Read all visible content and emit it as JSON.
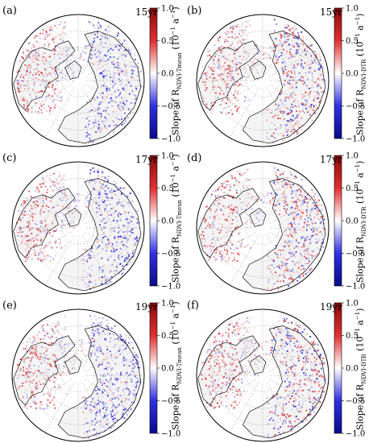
{
  "panels": [
    {
      "label": "(a)",
      "period": "15yr",
      "variable": "NDVI-Tmean"
    },
    {
      "label": "(b)",
      "period": "15yr",
      "variable": "NDVI-DTR"
    },
    {
      "label": "(c)",
      "period": "17yr",
      "variable": "NDVI-Tmean"
    },
    {
      "label": "(d)",
      "period": "17yr",
      "variable": "NDVI-DTR"
    },
    {
      "label": "(e)",
      "period": "19yr",
      "variable": "NDVI-Tmean"
    },
    {
      "label": "(f)",
      "period": "19yr",
      "variable": "NDVI-DTR"
    }
  ],
  "colorbar": {
    "title_prefix": "Slope of R",
    "unit": "(10",
    "unit_exp": "−1",
    "unit_mid": " a",
    "unit_close": ")",
    "ticks": [
      "1.0",
      "0.5",
      "0.0",
      "−0.5",
      "−1.0"
    ],
    "tick_values": [
      1.0,
      0.5,
      0.0,
      -0.5,
      -1.0
    ],
    "range": [
      -1.0,
      1.0
    ],
    "colors": [
      "#0a0a8a",
      "#3030e0",
      "#ffffff",
      "#e03030",
      "#8a0a0a"
    ]
  },
  "projection": "north-polar-stereographic",
  "graticule": true
}
